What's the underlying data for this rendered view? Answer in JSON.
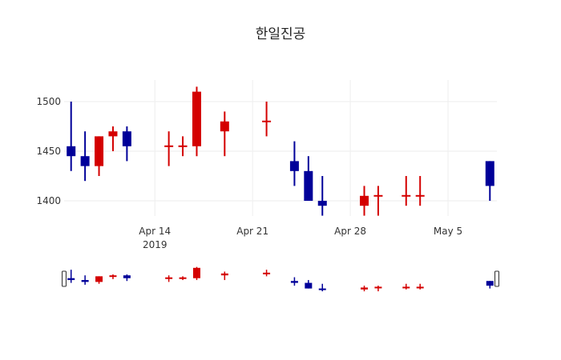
{
  "chart_data": {
    "type": "candlestick",
    "title": "한일진공",
    "xlabel": "",
    "ylabel": "",
    "ylim": [
      1377,
      1522
    ],
    "yticks": [
      1400,
      1450,
      1500
    ],
    "xticks": [
      {
        "date": "2019-04-14",
        "label": "Apr 14",
        "sublabel": "2019"
      },
      {
        "date": "2019-04-21",
        "label": "Apr 21",
        "sublabel": ""
      },
      {
        "date": "2019-04-28",
        "label": "Apr 28",
        "sublabel": ""
      },
      {
        "date": "2019-05-05",
        "label": "May 5",
        "sublabel": ""
      }
    ],
    "xrange": [
      "2019-04-07T12:00",
      "2019-05-08T12:00"
    ],
    "grid": true,
    "rangeslider": true,
    "increasing_color": "#d40000",
    "decreasing_color": "#000099",
    "candles": [
      {
        "date": "2019-04-08",
        "open": 1455,
        "high": 1500,
        "low": 1430,
        "close": 1445
      },
      {
        "date": "2019-04-09",
        "open": 1445,
        "high": 1470,
        "low": 1420,
        "close": 1435
      },
      {
        "date": "2019-04-10",
        "open": 1435,
        "high": 1465,
        "low": 1425,
        "close": 1465
      },
      {
        "date": "2019-04-11",
        "open": 1465,
        "high": 1475,
        "low": 1450,
        "close": 1470
      },
      {
        "date": "2019-04-12",
        "open": 1470,
        "high": 1475,
        "low": 1440,
        "close": 1455
      },
      {
        "date": "2019-04-15",
        "open": 1455,
        "high": 1470,
        "low": 1435,
        "close": 1455
      },
      {
        "date": "2019-04-16",
        "open": 1455,
        "high": 1465,
        "low": 1445,
        "close": 1455
      },
      {
        "date": "2019-04-17",
        "open": 1455,
        "high": 1515,
        "low": 1445,
        "close": 1510
      },
      {
        "date": "2019-04-19",
        "open": 1470,
        "high": 1490,
        "low": 1445,
        "close": 1480
      },
      {
        "date": "2019-04-22",
        "open": 1480,
        "high": 1500,
        "low": 1465,
        "close": 1480
      },
      {
        "date": "2019-04-24",
        "open": 1440,
        "high": 1460,
        "low": 1415,
        "close": 1430
      },
      {
        "date": "2019-04-25",
        "open": 1430,
        "high": 1445,
        "low": 1400,
        "close": 1400
      },
      {
        "date": "2019-04-26",
        "open": 1400,
        "high": 1425,
        "low": 1385,
        "close": 1395
      },
      {
        "date": "2019-04-29",
        "open": 1395,
        "high": 1415,
        "low": 1385,
        "close": 1405
      },
      {
        "date": "2019-04-30",
        "open": 1405,
        "high": 1415,
        "low": 1385,
        "close": 1405
      },
      {
        "date": "2019-05-02",
        "open": 1405,
        "high": 1425,
        "low": 1395,
        "close": 1405
      },
      {
        "date": "2019-05-03",
        "open": 1405,
        "high": 1425,
        "low": 1395,
        "close": 1405
      },
      {
        "date": "2019-05-08",
        "open": 1440,
        "high": 1440,
        "low": 1400,
        "close": 1415
      }
    ]
  }
}
